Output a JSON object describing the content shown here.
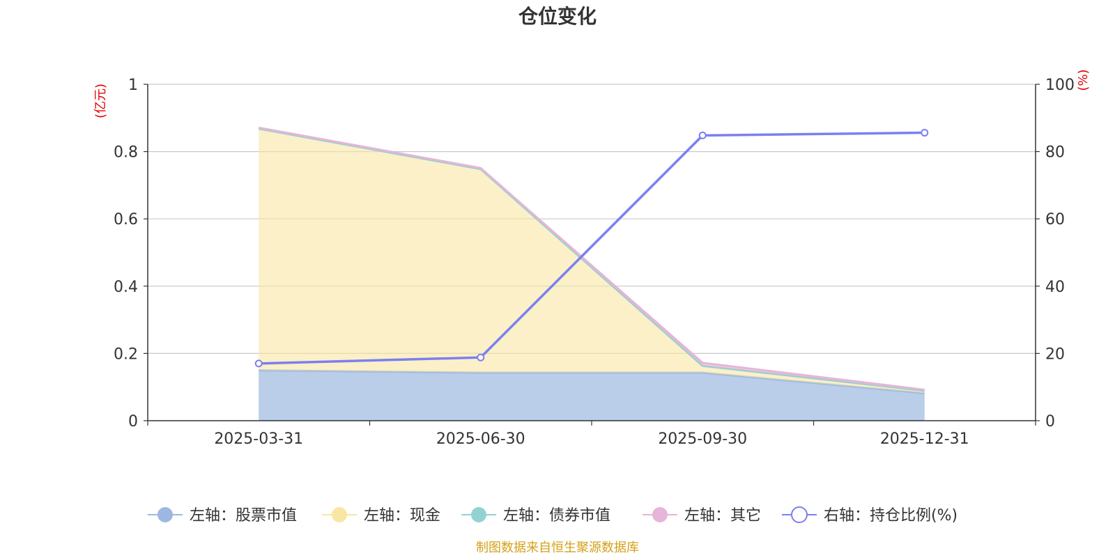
{
  "chart_data": {
    "type": "area",
    "title": "仓位变化",
    "left_axis_unit": "(亿元)",
    "right_axis_unit": "(%)",
    "categories": [
      "2025-03-31",
      "2025-06-30",
      "2025-09-30",
      "2025-12-31"
    ],
    "left_ylim": [
      0,
      1
    ],
    "left_yticks": [
      "0",
      "0.2",
      "0.4",
      "0.6",
      "0.8",
      "1"
    ],
    "right_ylim": [
      0,
      100
    ],
    "right_yticks": [
      "0",
      "20",
      "40",
      "60",
      "80",
      "100"
    ],
    "stacked": true,
    "grid": true,
    "legend_position": "bottom",
    "series": [
      {
        "name": "左轴：股票市值",
        "axis": "left",
        "type": "area",
        "values": [
          0.15,
          0.143,
          0.143,
          0.082
        ]
      },
      {
        "name": "左轴：现金",
        "axis": "left",
        "type": "area",
        "values": [
          0.718,
          0.605,
          0.02,
          0.007
        ]
      },
      {
        "name": "左轴：债券市值",
        "axis": "left",
        "type": "area",
        "values": [
          0,
          0,
          0,
          0
        ]
      },
      {
        "name": "左轴：其它",
        "axis": "left",
        "type": "area",
        "values": [
          0.003,
          0.003,
          0.009,
          0.003
        ]
      },
      {
        "name": "右轴：持仓比例(%)",
        "axis": "right",
        "type": "line",
        "values": [
          17.0,
          18.8,
          84.8,
          85.6
        ]
      }
    ],
    "colors": {
      "stock": "#9db8e0",
      "cash": "#f8e6a3",
      "bond": "#93d2d2",
      "other": "#e6b5d8",
      "ratio": "#7b7ff0",
      "unit_label": "#e60000",
      "source": "#d4a017"
    }
  },
  "source_note": "制图数据来自恒生聚源数据库"
}
